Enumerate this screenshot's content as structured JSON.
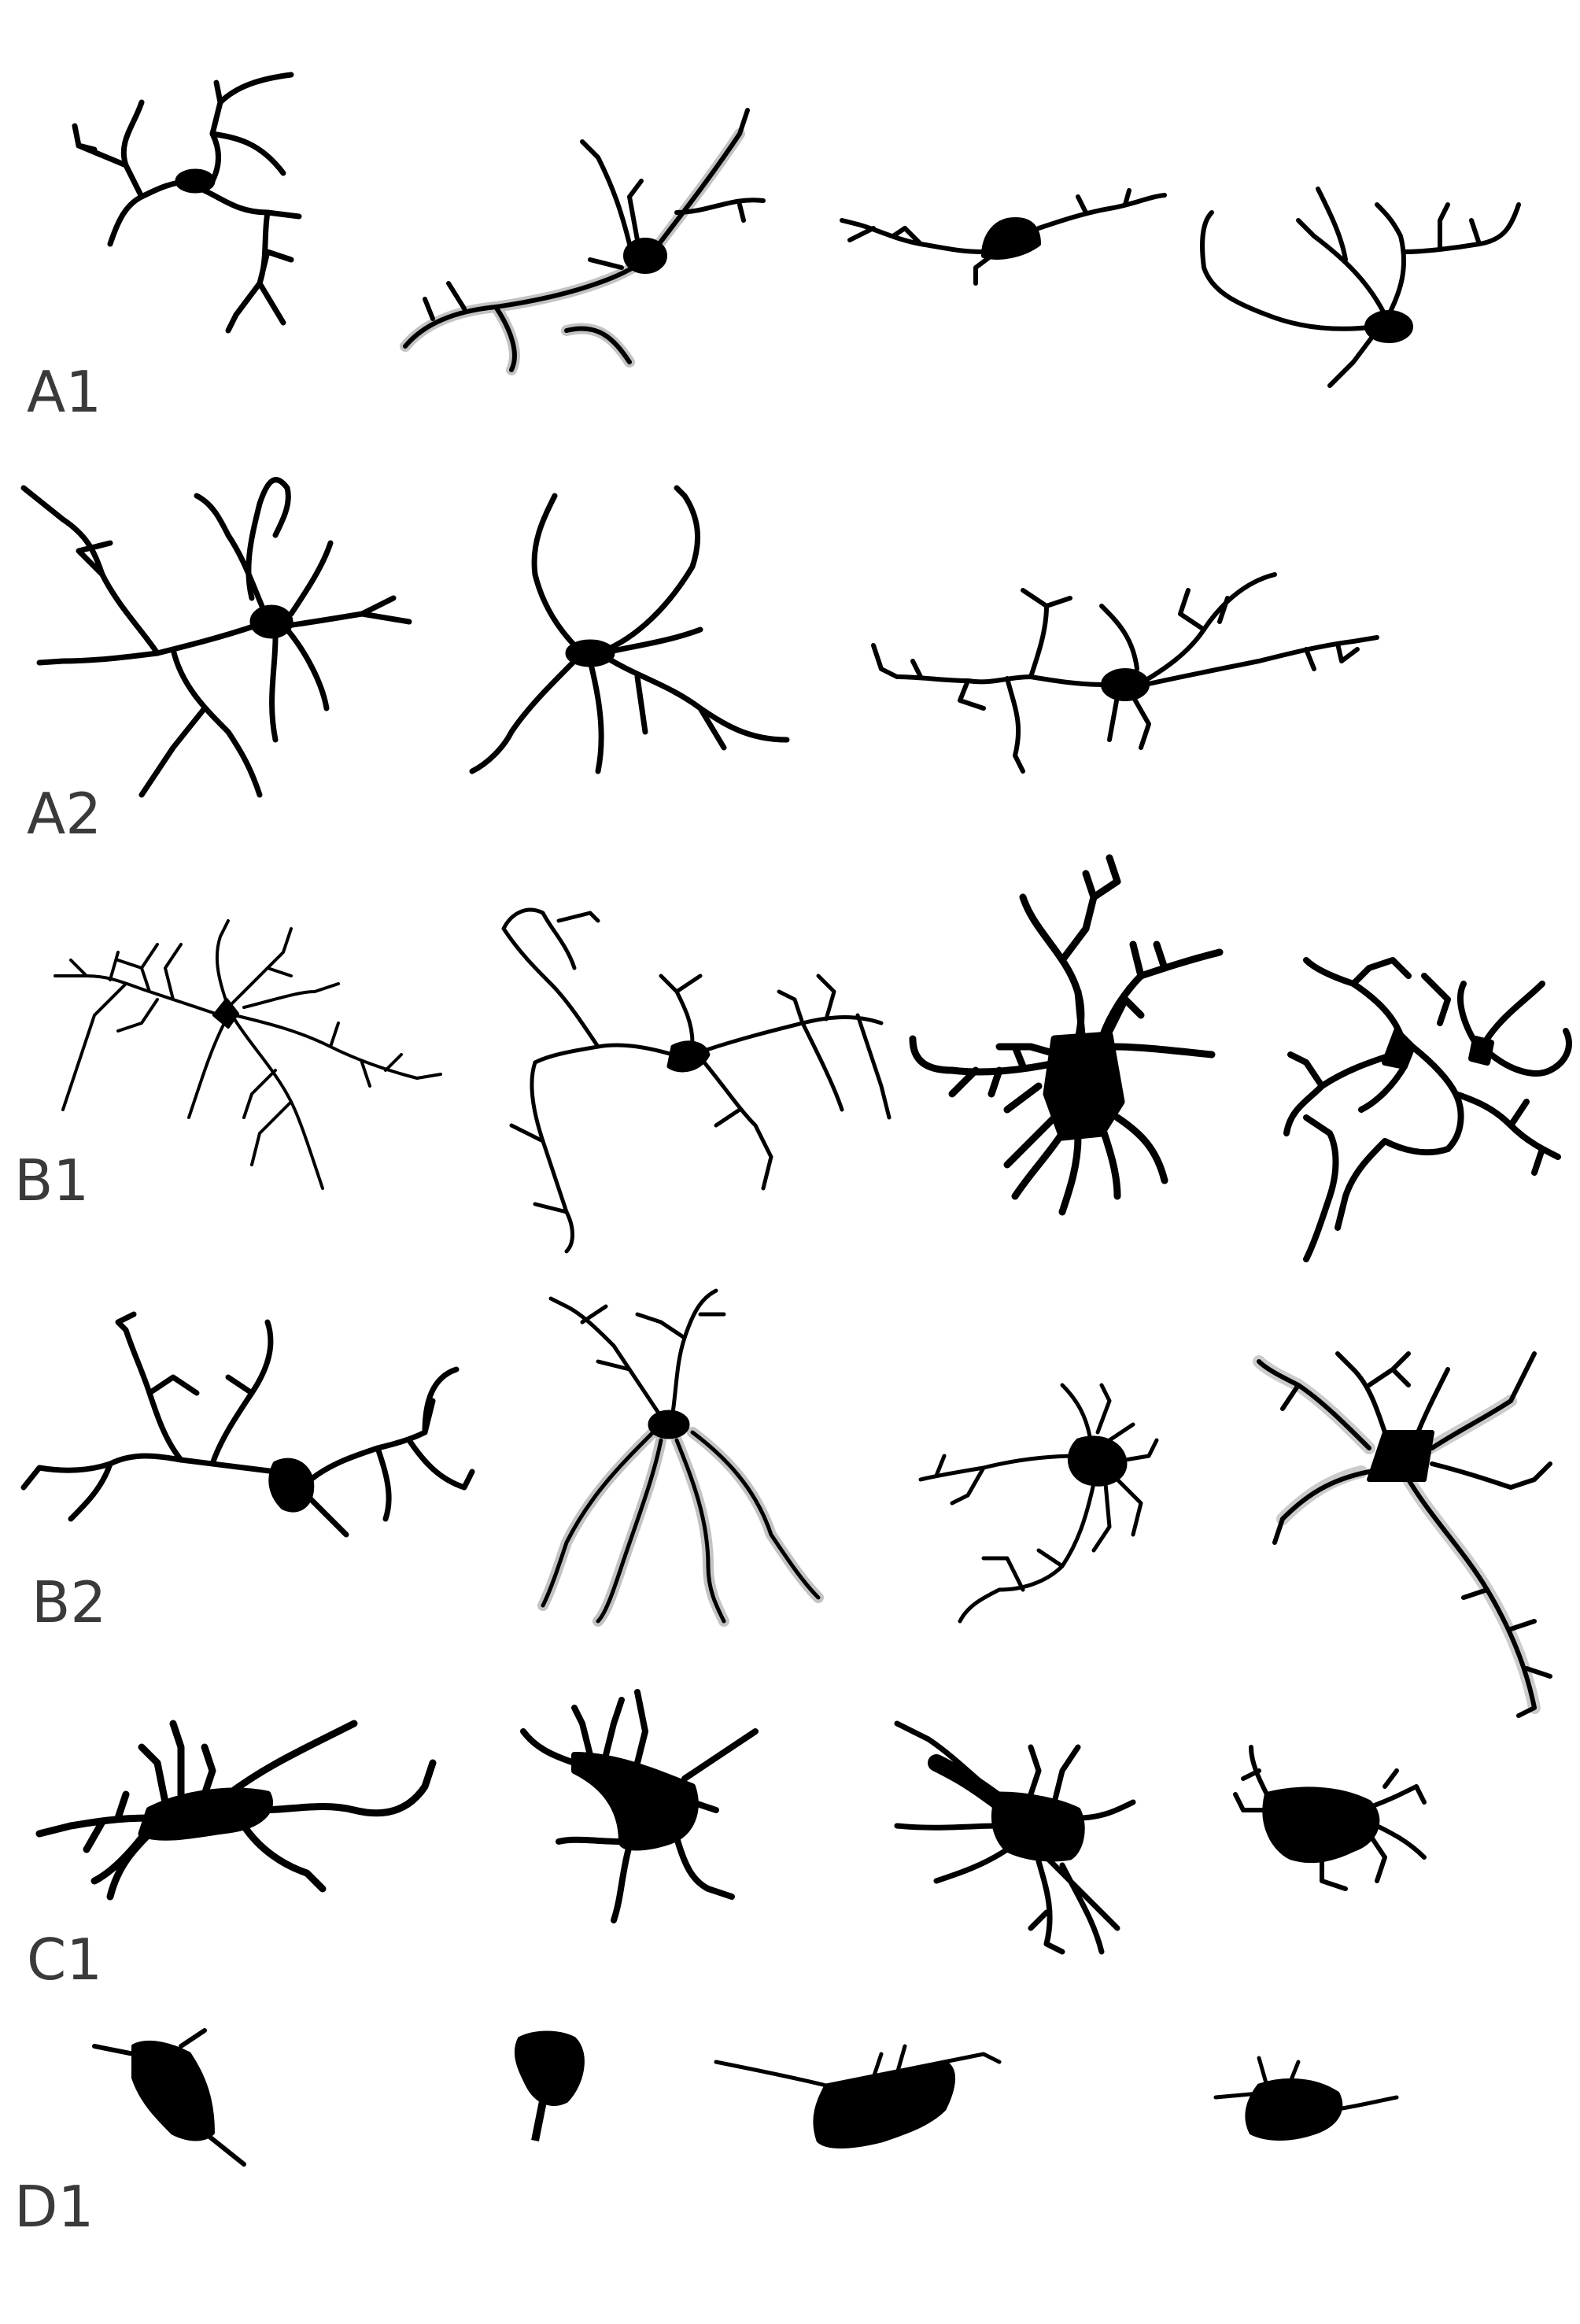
{
  "rows": [
    {
      "label": "A1",
      "cells": 4
    },
    {
      "label": "A2",
      "cells": 3
    },
    {
      "label": "B1",
      "cells": 4
    },
    {
      "label": "B2",
      "cells": 4
    },
    {
      "label": "C1",
      "cells": 4
    },
    {
      "label": "D1",
      "cells": 4
    }
  ],
  "colors": {
    "cell": "#000000",
    "faint": "#7a7a7a",
    "label": "#3a3a3a",
    "background": "#ffffff"
  }
}
